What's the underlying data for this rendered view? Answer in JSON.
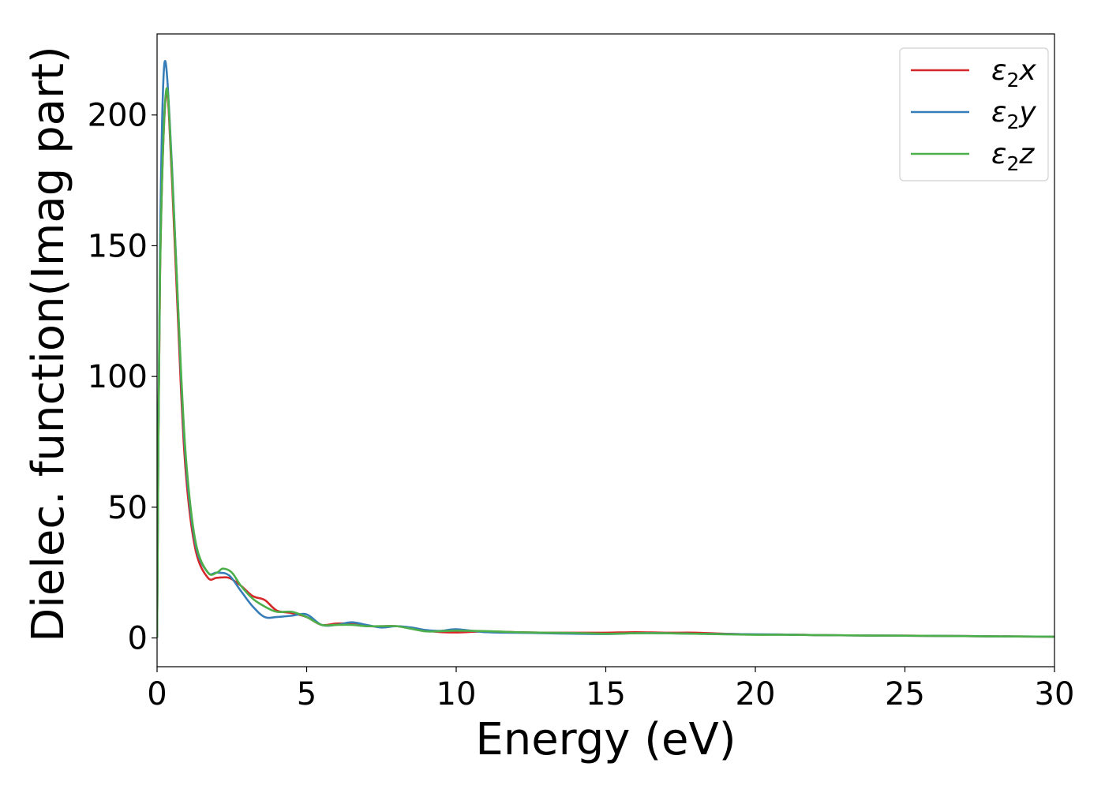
{
  "chart_data": {
    "type": "line",
    "xlabel": "Energy (eV)",
    "ylabel": "Dielec. function(Imag part)",
    "xlim": [
      0,
      30
    ],
    "ylim": [
      -11,
      231
    ],
    "xticks": [
      0,
      5,
      10,
      15,
      20,
      25,
      30
    ],
    "yticks": [
      0,
      50,
      100,
      150,
      200
    ],
    "grid": false,
    "legend_position": "top-right",
    "series": [
      {
        "name": "ε₂x",
        "legend_base": "ε",
        "legend_sub": "2",
        "legend_suffix": "x",
        "color": "#d62728",
        "points": [
          [
            0,
            0
          ],
          [
            0.1,
            140
          ],
          [
            0.3,
            208
          ],
          [
            0.5,
            175
          ],
          [
            0.8,
            95
          ],
          [
            1.0,
            58
          ],
          [
            1.3,
            33
          ],
          [
            1.7,
            23
          ],
          [
            2.0,
            23
          ],
          [
            2.4,
            23
          ],
          [
            2.8,
            20
          ],
          [
            3.2,
            16
          ],
          [
            3.6,
            14.5
          ],
          [
            4.0,
            10.5
          ],
          [
            4.5,
            9.5
          ],
          [
            5.0,
            8
          ],
          [
            5.5,
            5
          ],
          [
            6.0,
            5.5
          ],
          [
            6.5,
            5.5
          ],
          [
            7.0,
            4.5
          ],
          [
            7.5,
            4.5
          ],
          [
            8.0,
            4.5
          ],
          [
            8.5,
            3.8
          ],
          [
            9.0,
            2.8
          ],
          [
            9.5,
            2.2
          ],
          [
            10.0,
            2.1
          ],
          [
            11.0,
            2.5
          ],
          [
            12.0,
            2.2
          ],
          [
            13.0,
            2.0
          ],
          [
            14.0,
            2.0
          ],
          [
            15.0,
            2.0
          ],
          [
            16.0,
            2.2
          ],
          [
            17.0,
            2.0
          ],
          [
            18.0,
            2.0
          ],
          [
            19.0,
            1.6
          ],
          [
            20.0,
            1.3
          ],
          [
            21.0,
            1.3
          ],
          [
            22.0,
            1.1
          ],
          [
            24.0,
            0.9
          ],
          [
            26.0,
            0.8
          ],
          [
            28.0,
            0.6
          ],
          [
            30.0,
            0.5
          ]
        ]
      },
      {
        "name": "ε₂y",
        "legend_base": "ε",
        "legend_sub": "2",
        "legend_suffix": "y",
        "color": "#377eb8",
        "points": [
          [
            0,
            0
          ],
          [
            0.1,
            150
          ],
          [
            0.25,
            220
          ],
          [
            0.5,
            180
          ],
          [
            0.8,
            100
          ],
          [
            1.0,
            62
          ],
          [
            1.3,
            35
          ],
          [
            1.7,
            25
          ],
          [
            2.0,
            25
          ],
          [
            2.4,
            24
          ],
          [
            2.8,
            18
          ],
          [
            3.2,
            12
          ],
          [
            3.6,
            8
          ],
          [
            4.0,
            8
          ],
          [
            4.5,
            8.5
          ],
          [
            5.0,
            9
          ],
          [
            5.5,
            5
          ],
          [
            6.0,
            5
          ],
          [
            6.5,
            6
          ],
          [
            7.0,
            5
          ],
          [
            7.5,
            4
          ],
          [
            8.0,
            4.5
          ],
          [
            8.5,
            4
          ],
          [
            9.0,
            3
          ],
          [
            9.5,
            2.7
          ],
          [
            10.0,
            3.3
          ],
          [
            11.0,
            2.2
          ],
          [
            12.0,
            2.0
          ],
          [
            13.0,
            1.8
          ],
          [
            14.0,
            1.6
          ],
          [
            15.0,
            1.5
          ],
          [
            16.0,
            1.8
          ],
          [
            17.0,
            1.8
          ],
          [
            18.0,
            1.6
          ],
          [
            19.0,
            1.5
          ],
          [
            20.0,
            1.4
          ],
          [
            21.0,
            1.3
          ],
          [
            22.0,
            1.1
          ],
          [
            24.0,
            0.9
          ],
          [
            26.0,
            0.8
          ],
          [
            28.0,
            0.6
          ],
          [
            30.0,
            0.5
          ]
        ]
      },
      {
        "name": "ε₂z",
        "legend_base": "ε",
        "legend_sub": "2",
        "legend_suffix": "z",
        "color": "#4daf4a",
        "points": [
          [
            0,
            0
          ],
          [
            0.1,
            140
          ],
          [
            0.3,
            209
          ],
          [
            0.5,
            178
          ],
          [
            0.8,
            102
          ],
          [
            1.0,
            64
          ],
          [
            1.3,
            36
          ],
          [
            1.7,
            25
          ],
          [
            2.0,
            25
          ],
          [
            2.2,
            26.5
          ],
          [
            2.5,
            25
          ],
          [
            2.8,
            20
          ],
          [
            3.2,
            15
          ],
          [
            3.6,
            12
          ],
          [
            4.0,
            10
          ],
          [
            4.5,
            10
          ],
          [
            5.0,
            8
          ],
          [
            5.5,
            5
          ],
          [
            6.0,
            5
          ],
          [
            6.5,
            5
          ],
          [
            7.0,
            4.5
          ],
          [
            7.5,
            4.5
          ],
          [
            8.0,
            4.5
          ],
          [
            8.5,
            3.5
          ],
          [
            9.0,
            2.5
          ],
          [
            9.5,
            2.6
          ],
          [
            10.0,
            2.8
          ],
          [
            11.0,
            2.6
          ],
          [
            12.0,
            2.2
          ],
          [
            13.0,
            2.0
          ],
          [
            14.0,
            1.9
          ],
          [
            15.0,
            1.6
          ],
          [
            16.0,
            1.8
          ],
          [
            17.0,
            1.8
          ],
          [
            18.0,
            1.6
          ],
          [
            19.0,
            1.4
          ],
          [
            20.0,
            1.2
          ],
          [
            21.0,
            1.2
          ],
          [
            22.0,
            1.1
          ],
          [
            24.0,
            0.9
          ],
          [
            26.0,
            0.8
          ],
          [
            28.0,
            0.6
          ],
          [
            30.0,
            0.5
          ]
        ]
      }
    ]
  }
}
